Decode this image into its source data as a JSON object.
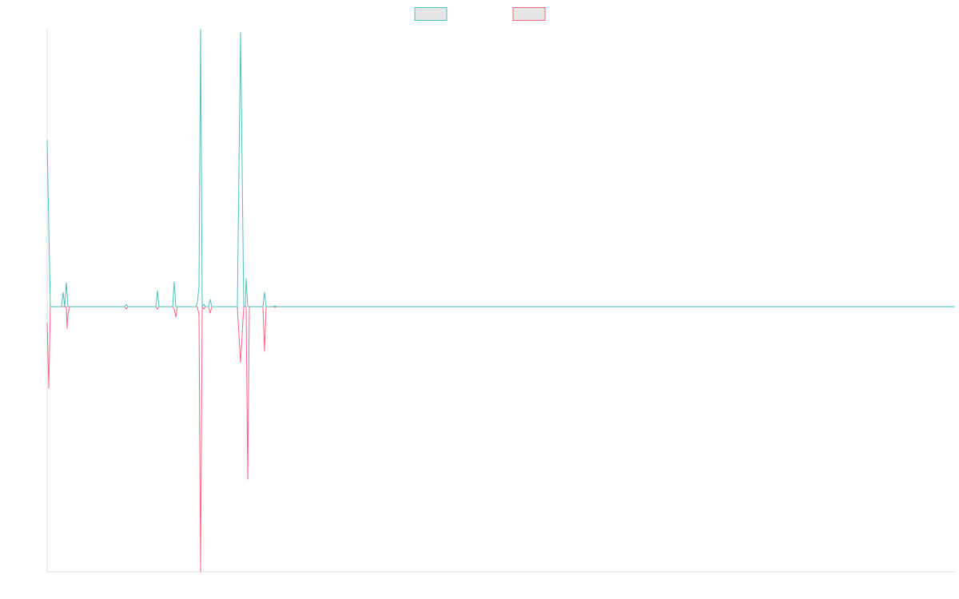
{
  "chart_data": {
    "type": "line",
    "legend": "top",
    "grid": false,
    "xlim": [
      0,
      1136
    ],
    "ylim": [
      -332,
      348
    ],
    "x": [
      0,
      2,
      4,
      18,
      20,
      22,
      24,
      25,
      26,
      28,
      97,
      99,
      101,
      136,
      138,
      140,
      157,
      159,
      161,
      163,
      186,
      188,
      190,
      192,
      194,
      196,
      198,
      202,
      204,
      206,
      238,
      242,
      246,
      248,
      249,
      251,
      253,
      270,
      272,
      274,
      283,
      285,
      287,
      1136
    ],
    "series": [
      {
        "color": "#ff6384",
        "values": [
          -20,
          -102,
          0,
          0,
          0,
          0,
          0,
          -27,
          -10,
          0,
          0,
          -3,
          0,
          0,
          -3,
          0,
          0,
          -3,
          -13,
          0,
          0,
          0,
          -10,
          -332,
          0,
          -3,
          0,
          0,
          -8,
          0,
          0,
          -70,
          0,
          0,
          0,
          -216,
          0,
          0,
          -56,
          0,
          0,
          -1,
          0,
          0
        ]
      },
      {
        "color": "#4bc0c0",
        "values": [
          209,
          100,
          0,
          0,
          18,
          0,
          30,
          15,
          0,
          0,
          0,
          3,
          0,
          0,
          20,
          0,
          0,
          31,
          0,
          0,
          0,
          5,
          25,
          348,
          0,
          3,
          0,
          0,
          9,
          0,
          0,
          343,
          0,
          0,
          35,
          0,
          0,
          0,
          18,
          0,
          0,
          1,
          0,
          0
        ]
      }
    ]
  }
}
